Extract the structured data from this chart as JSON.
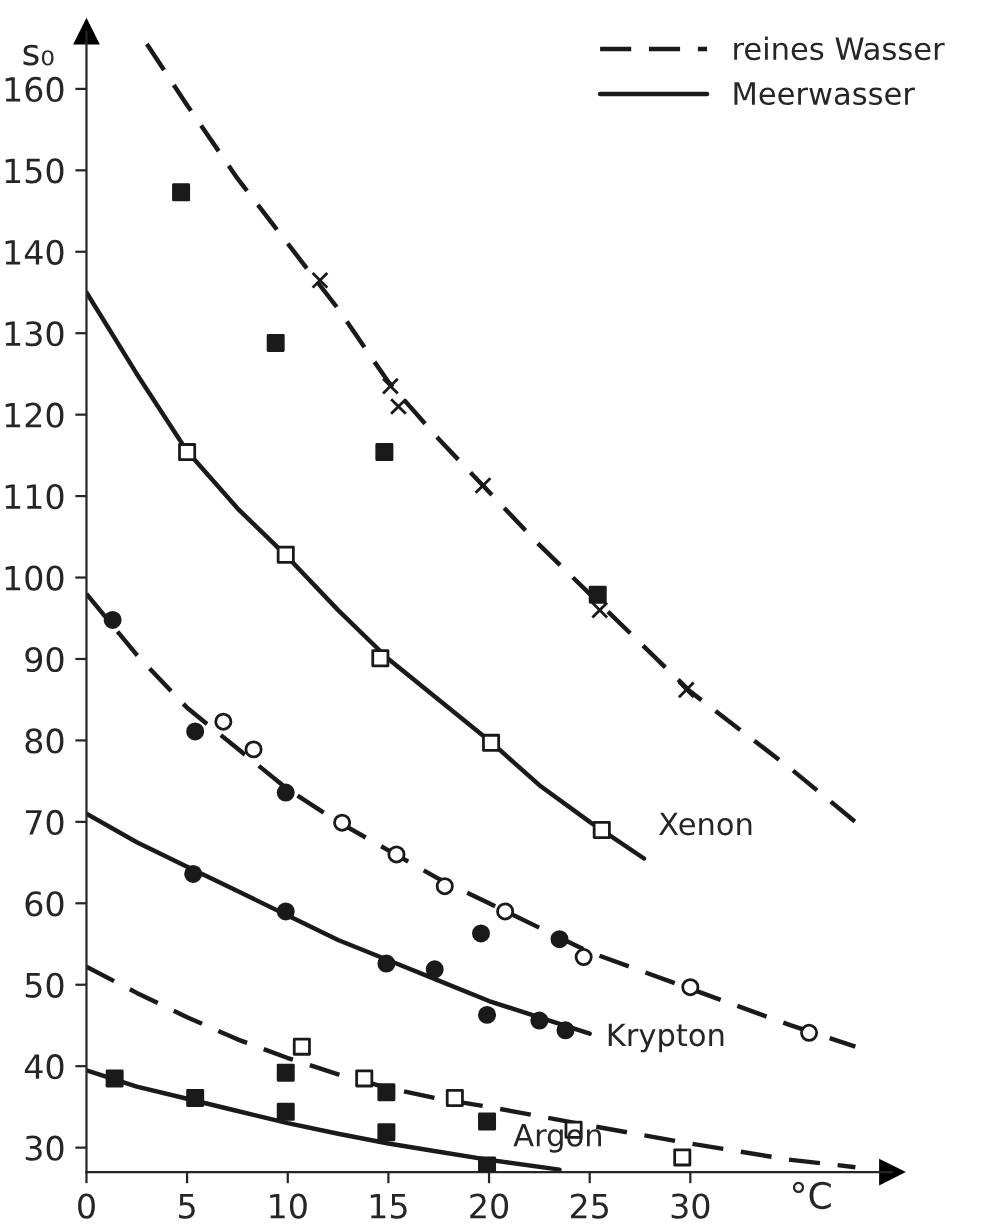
{
  "chart_data": {
    "type": "line",
    "xlabel": "°C",
    "ylabel": "s₀",
    "xlim": [
      0,
      40
    ],
    "ylim": [
      27,
      167
    ],
    "xticks": [
      0,
      5,
      10,
      15,
      20,
      25,
      30
    ],
    "yticks": [
      30,
      40,
      50,
      60,
      70,
      80,
      90,
      100,
      110,
      120,
      130,
      140,
      150,
      160
    ],
    "grid": false,
    "legend": "top right",
    "series": [
      {
        "name": "reines Wasser",
        "line_style": "dashed",
        "color": "#1a1a1a",
        "x": [
          3,
          5,
          7.5,
          10,
          12.5,
          15,
          17.5,
          20,
          22.5,
          25,
          30,
          35,
          38.2
        ],
        "values": [
          165.5,
          158,
          149,
          141,
          133,
          124,
          117,
          110.5,
          104,
          98,
          86,
          76.5,
          70
        ]
      },
      {
        "name": "Meerwasser",
        "line_style": "solid",
        "color": "#1a1a1a",
        "x": [
          0,
          2.5,
          5,
          7.5,
          10,
          12.5,
          15,
          17.5,
          20,
          22.5,
          25,
          27.7
        ],
        "values": [
          135,
          125,
          115.5,
          108.5,
          102.5,
          96,
          90,
          85,
          80,
          74.5,
          70,
          65.5
        ]
      },
      {
        "line_style": "dashed",
        "color": "#1a1a1a",
        "x": [
          0,
          2.5,
          5,
          7.5,
          10,
          12.5,
          15,
          17.5,
          20,
          22.5,
          25,
          30,
          35,
          38.2
        ],
        "values": [
          98,
          90.5,
          84,
          79,
          74,
          70,
          66.5,
          63,
          60,
          57,
          54,
          49.5,
          45,
          42.4
        ]
      },
      {
        "line_style": "solid",
        "color": "#1a1a1a",
        "x": [
          0,
          2.5,
          5,
          7.5,
          10,
          12.5,
          15,
          17.5,
          20,
          22.5,
          25
        ],
        "values": [
          71,
          67.5,
          64.5,
          61.5,
          58.5,
          55.5,
          53,
          50.5,
          48,
          46,
          44
        ]
      },
      {
        "line_style": "dashed",
        "color": "#1a1a1a",
        "x": [
          0,
          2.5,
          5,
          7.5,
          10,
          12.5,
          15,
          17.5,
          20,
          25,
          30,
          35,
          38.2
        ],
        "values": [
          52.2,
          49,
          46,
          43.3,
          41,
          39,
          37.3,
          36,
          35,
          32.7,
          30.5,
          28.5,
          27.6
        ]
      },
      {
        "line_style": "solid",
        "color": "#1a1a1a",
        "x": [
          0,
          2.5,
          5,
          7.5,
          10,
          12.5,
          15,
          17.5,
          20,
          23.5
        ],
        "values": [
          39.5,
          37.5,
          36,
          34.5,
          33,
          31.7,
          30.5,
          29.5,
          28.5,
          27.3
        ]
      },
      {
        "type": "scatter",
        "marker": "cross",
        "color": "#1a1a1a",
        "x": [
          11.6,
          15.1,
          15.5,
          19.7,
          25.5,
          29.8
        ],
        "values": [
          136.5,
          123.5,
          121,
          111.3,
          96,
          86.2
        ]
      },
      {
        "type": "scatter",
        "marker": "square",
        "color": "#1a1a1a",
        "x": [
          4.7,
          9.4,
          14.8,
          25.4
        ],
        "values": [
          147.3,
          128.8,
          115.4,
          97.9
        ]
      },
      {
        "type": "scatter",
        "marker": "square",
        "color": "#ffffff",
        "x": [
          5,
          9.9,
          14.6,
          20.1,
          25.6
        ],
        "values": [
          115.4,
          102.8,
          90.1,
          79.7,
          69
        ]
      },
      {
        "type": "scatter",
        "marker": "circle",
        "color": "#ffffff",
        "x": [
          6.8,
          8.3,
          12.7,
          15.4,
          17.8,
          20.8,
          24.7,
          30,
          35.9
        ],
        "values": [
          82.3,
          78.9,
          69.9,
          66,
          62.1,
          59,
          53.4,
          49.7,
          44.1
        ]
      },
      {
        "type": "scatter",
        "marker": "circle",
        "color": "#1a1a1a",
        "x": [
          1.3,
          5.4,
          9.9,
          5.3,
          9.9,
          14.9,
          17.3,
          19.6,
          19.9,
          23.5,
          22.5,
          23.8
        ],
        "values": [
          94.8,
          81.1,
          73.6,
          63.6,
          59,
          52.6,
          51.9,
          56.3,
          46.3,
          55.6,
          45.6,
          44.4
        ]
      },
      {
        "type": "scatter",
        "marker": "square",
        "color": "#ffffff",
        "x": [
          10.7,
          13.8,
          18.3,
          24.2,
          29.6
        ],
        "values": [
          42.4,
          38.5,
          36.1,
          32.2,
          28.8
        ]
      },
      {
        "type": "scatter",
        "marker": "square",
        "color": "#1a1a1a",
        "x": [
          1.4,
          5.4,
          9.9,
          9.9,
          14.9,
          14.9,
          19.9,
          19.9
        ],
        "values": [
          38.5,
          36.1,
          39.2,
          34.4,
          36.8,
          31.9,
          33.2,
          27.8
        ]
      }
    ],
    "annotations": [
      "Xenon",
      "Krypton",
      "Argon"
    ]
  }
}
